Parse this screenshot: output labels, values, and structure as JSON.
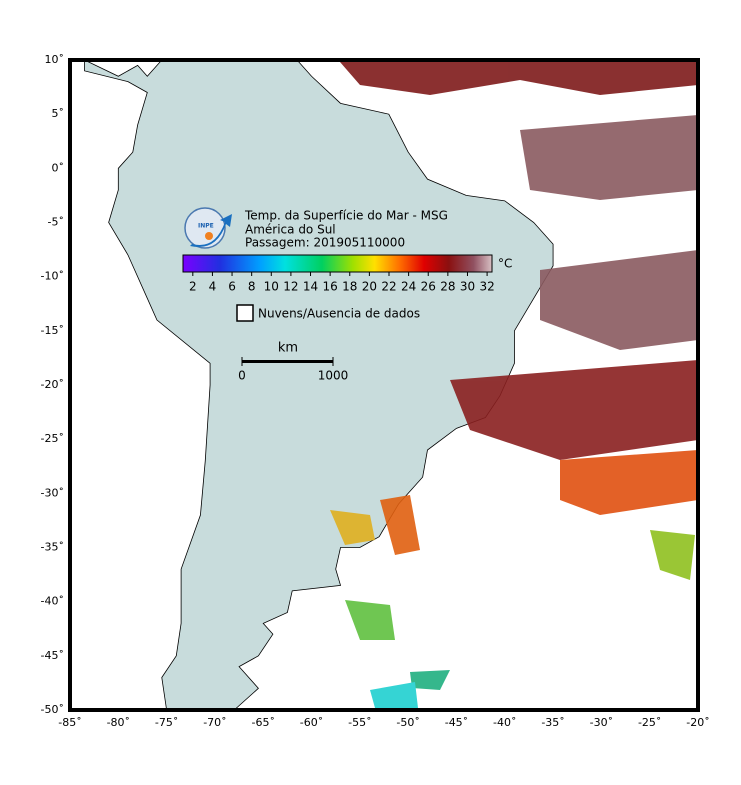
{
  "map": {
    "xlim": [
      -85,
      -20
    ],
    "ylim": [
      -50,
      10
    ],
    "xticks": [
      {
        "value": -85,
        "label": "-85˚"
      },
      {
        "value": -80,
        "label": "-80˚"
      },
      {
        "value": -75,
        "label": "-75˚"
      },
      {
        "value": -70,
        "label": "-70˚"
      },
      {
        "value": -65,
        "label": "-65˚"
      },
      {
        "value": -60,
        "label": "-60˚"
      },
      {
        "value": -55,
        "label": "-55˚"
      },
      {
        "value": -50,
        "label": "-50˚"
      },
      {
        "value": -45,
        "label": "-45˚"
      },
      {
        "value": -40,
        "label": "-40˚"
      },
      {
        "value": -35,
        "label": "-35˚"
      },
      {
        "value": -30,
        "label": "-30˚"
      },
      {
        "value": -25,
        "label": "-25˚"
      },
      {
        "value": -20,
        "label": "-20˚"
      }
    ],
    "yticks": [
      {
        "value": 10,
        "label": "10˚"
      },
      {
        "value": 5,
        "label": "5˚"
      },
      {
        "value": 0,
        "label": "0˚"
      },
      {
        "value": -5,
        "label": "-5˚"
      },
      {
        "value": -10,
        "label": "-10˚"
      },
      {
        "value": -15,
        "label": "-15˚"
      },
      {
        "value": -20,
        "label": "-20˚"
      },
      {
        "value": -25,
        "label": "-25˚"
      },
      {
        "value": -30,
        "label": "-30˚"
      },
      {
        "value": -35,
        "label": "-35˚"
      },
      {
        "value": -40,
        "label": "-40˚"
      },
      {
        "value": -45,
        "label": "-45˚"
      },
      {
        "value": -50,
        "label": "-50˚"
      }
    ],
    "grid": true
  },
  "header": {
    "title": "Temp. da Superfície do Mar - MSG",
    "region": "América do Sul",
    "pass": "Passagem: 201905110000",
    "logo": "INPE"
  },
  "colorbar": {
    "range": [
      1,
      32.5
    ],
    "ticks": [
      2,
      4,
      6,
      8,
      10,
      12,
      14,
      16,
      18,
      20,
      22,
      24,
      26,
      28,
      30,
      32
    ],
    "unit": "°C"
  },
  "legend": {
    "label": "Nuvens/Ausencia de dados"
  },
  "scale_bar": {
    "unit": "km",
    "range": [
      0,
      1000
    ],
    "ticks": [
      0,
      1000
    ]
  }
}
